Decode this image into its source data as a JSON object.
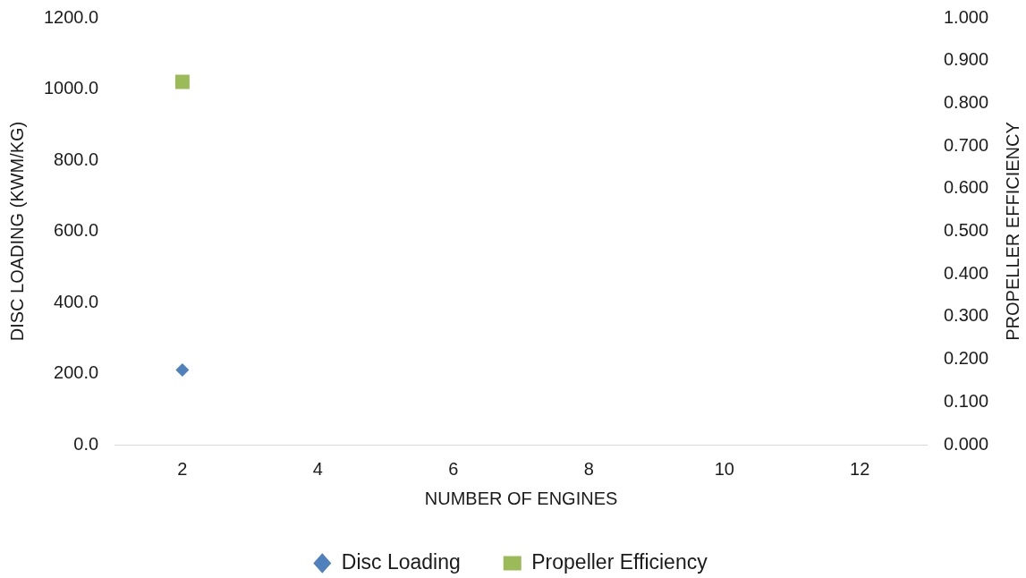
{
  "chart_data": {
    "type": "scatter",
    "xlabel": "NUMBER OF ENGINES",
    "ylabel": "DISC LOADING (KWM/KG)",
    "y2label": "PROPELLER EFFICIENCY",
    "x": [
      2
    ],
    "series": [
      {
        "name": "Disc Loading",
        "color": "#4f81bd",
        "marker": "diamond",
        "values": [
          210
        ]
      },
      {
        "name": "Propeller Efficiency",
        "color": "#9bbb59",
        "marker": "square",
        "axis": "y2",
        "values": [
          0.85
        ]
      }
    ],
    "xlim": [
      1,
      13
    ],
    "xticks": [
      2,
      4,
      6,
      8,
      10,
      12
    ],
    "ylim": [
      0,
      1200
    ],
    "yticks": [
      {
        "value": 0,
        "label": "0.0"
      },
      {
        "value": 200,
        "label": "200.0"
      },
      {
        "value": 400,
        "label": "400.0"
      },
      {
        "value": 600,
        "label": "600.0"
      },
      {
        "value": 800,
        "label": "800.0"
      },
      {
        "value": 1000,
        "label": "1000.0"
      },
      {
        "value": 1200,
        "label": "1200.0"
      }
    ],
    "y2lim": [
      0,
      1
    ],
    "y2ticks": [
      {
        "value": 0,
        "label": "0.000"
      },
      {
        "value": 0.1,
        "label": "0.100"
      },
      {
        "value": 0.2,
        "label": "0.200"
      },
      {
        "value": 0.3,
        "label": "0.300"
      },
      {
        "value": 0.4,
        "label": "0.400"
      },
      {
        "value": 0.5,
        "label": "0.500"
      },
      {
        "value": 0.6,
        "label": "0.600"
      },
      {
        "value": 0.7,
        "label": "0.700"
      },
      {
        "value": 0.8,
        "label": "0.800"
      },
      {
        "value": 0.9,
        "label": "0.900"
      },
      {
        "value": 1,
        "label": "1.000"
      }
    ],
    "legend": "bottom"
  }
}
